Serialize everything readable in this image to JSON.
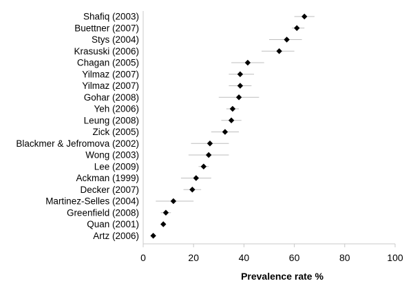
{
  "chart_data": {
    "type": "scatter",
    "subtype": "forest-plot",
    "title": "",
    "xlabel": "Prevalence rate %",
    "ylabel": "",
    "xlim": [
      0,
      100
    ],
    "xticks": [
      0,
      20,
      40,
      60,
      80,
      100
    ],
    "grid": false,
    "legend": "none",
    "marker": "diamond",
    "marker_color": "#000000",
    "ci_color": "#bdbdbd",
    "studies": [
      {
        "label": "Shafiq (2003)",
        "value": 64,
        "ci_low": 60,
        "ci_high": 68
      },
      {
        "label": "Buettner (2007)",
        "value": 61,
        "ci_low": 59,
        "ci_high": 64
      },
      {
        "label": "Stys (2004)",
        "value": 57,
        "ci_low": 50,
        "ci_high": 63
      },
      {
        "label": "Krasuski (2006)",
        "value": 54,
        "ci_low": 47,
        "ci_high": 60
      },
      {
        "label": "Chagan (2005)",
        "value": 41.5,
        "ci_low": 35,
        "ci_high": 48
      },
      {
        "label": "Yilmaz (2007)",
        "value": 38.5,
        "ci_low": 34,
        "ci_high": 44
      },
      {
        "label": "Yilmaz (2007)",
        "value": 38.5,
        "ci_low": 34,
        "ci_high": 43
      },
      {
        "label": "Gohar (2008)",
        "value": 38,
        "ci_low": 30,
        "ci_high": 46
      },
      {
        "label": "Yeh (2006)",
        "value": 35.5,
        "ci_low": 33,
        "ci_high": 38
      },
      {
        "label": "Leung (2008)",
        "value": 35,
        "ci_low": 31,
        "ci_high": 39
      },
      {
        "label": "Zick (2005)",
        "value": 32.5,
        "ci_low": 27,
        "ci_high": 38
      },
      {
        "label": "Blackmer & Jefromova (2002)",
        "value": 26.5,
        "ci_low": 19,
        "ci_high": 34
      },
      {
        "label": "Wong (2003)",
        "value": 26,
        "ci_low": 18,
        "ci_high": 34
      },
      {
        "label": "Lee (2009)",
        "value": 24,
        "ci_low": 22,
        "ci_high": 26
      },
      {
        "label": "Ackman (1999)",
        "value": 21,
        "ci_low": 15,
        "ci_high": 27
      },
      {
        "label": "Decker (2007)",
        "value": 19.5,
        "ci_low": 16,
        "ci_high": 23
      },
      {
        "label": "Martinez-Selles (2004)",
        "value": 12,
        "ci_low": 5,
        "ci_high": 20
      },
      {
        "label": "Greenfield (2008)",
        "value": 9,
        "ci_low": 7,
        "ci_high": 11
      },
      {
        "label": "Quan (2001)",
        "value": 8,
        "ci_low": 7,
        "ci_high": 9
      },
      {
        "label": "Artz (2006)",
        "value": 4,
        "ci_low": 3,
        "ci_high": 5
      }
    ]
  }
}
